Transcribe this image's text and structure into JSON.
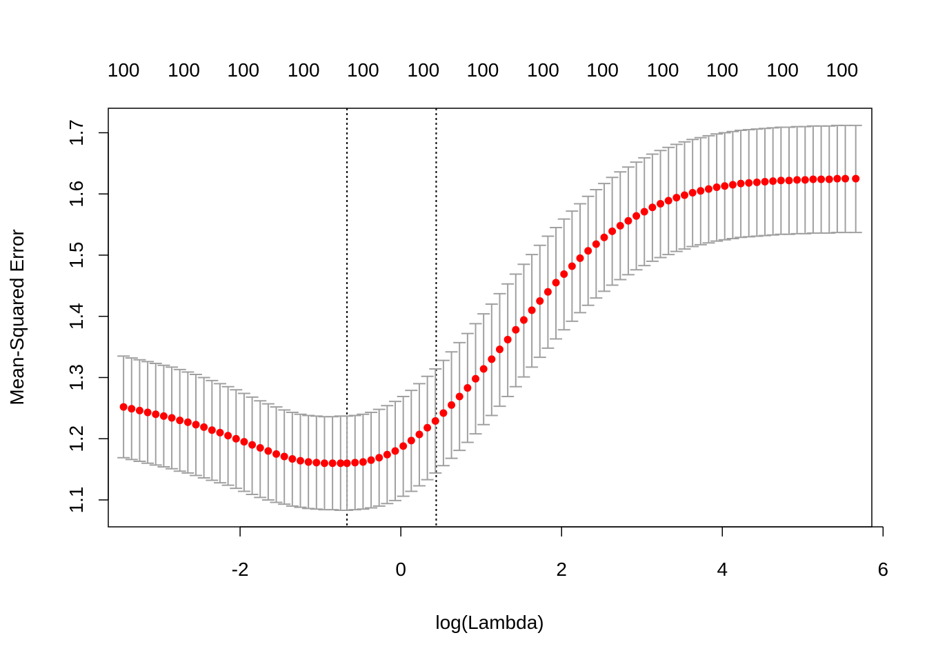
{
  "chart_data": {
    "type": "scatter",
    "title": "",
    "xlabel": "log(Lambda)",
    "ylabel": "Mean-Squared Error",
    "xlim": [
      -3.64,
      5.86
    ],
    "ylim": [
      1.056,
      1.74
    ],
    "x_ticks": [
      -2,
      0,
      2,
      4,
      6
    ],
    "x_tick_labels": [
      "-2",
      "0",
      "2",
      "4",
      "6"
    ],
    "y_ticks": [
      1.1,
      1.2,
      1.3,
      1.4,
      1.5,
      1.6,
      1.7
    ],
    "y_tick_labels": [
      "1.1",
      "1.2",
      "1.3",
      "1.4",
      "1.5",
      "1.6",
      "1.7"
    ],
    "top_axis": {
      "positions": [
        -3.45,
        -2.7,
        -1.96,
        -1.21,
        -0.47,
        0.28,
        1.02,
        1.77,
        2.51,
        3.26,
        4.0,
        4.75,
        5.49
      ],
      "labels": [
        "100",
        "100",
        "100",
        "100",
        "100",
        "100",
        "100",
        "100",
        "100",
        "100",
        "100",
        "100",
        "100"
      ]
    },
    "vlines": [
      {
        "name": "lambda.min",
        "x": -0.67
      },
      {
        "name": "lambda.1se",
        "x": 0.44
      }
    ],
    "point_color": "#ff0000",
    "errorbar_color": "#a0a0a0",
    "series": [
      {
        "name": "cv-mse",
        "x": [
          -3.45,
          -3.35,
          -3.25,
          -3.15,
          -3.05,
          -2.95,
          -2.85,
          -2.75,
          -2.65,
          -2.55,
          -2.45,
          -2.35,
          -2.25,
          -2.15,
          -2.05,
          -1.95,
          -1.85,
          -1.75,
          -1.65,
          -1.55,
          -1.45,
          -1.35,
          -1.25,
          -1.15,
          -1.05,
          -0.95,
          -0.85,
          -0.75,
          -0.67,
          -0.57,
          -0.47,
          -0.37,
          -0.27,
          -0.17,
          -0.07,
          0.03,
          0.13,
          0.23,
          0.33,
          0.43,
          0.53,
          0.63,
          0.73,
          0.83,
          0.93,
          1.03,
          1.13,
          1.23,
          1.33,
          1.43,
          1.53,
          1.63,
          1.73,
          1.83,
          1.93,
          2.03,
          2.13,
          2.23,
          2.33,
          2.43,
          2.53,
          2.63,
          2.73,
          2.83,
          2.93,
          3.03,
          3.13,
          3.23,
          3.33,
          3.43,
          3.53,
          3.63,
          3.73,
          3.83,
          3.93,
          4.03,
          4.13,
          4.23,
          4.33,
          4.43,
          4.53,
          4.63,
          4.73,
          4.83,
          4.93,
          5.03,
          5.13,
          5.23,
          5.33,
          5.43,
          5.53,
          5.66
        ],
        "mse": [
          1.252,
          1.249,
          1.246,
          1.243,
          1.24,
          1.237,
          1.234,
          1.23,
          1.227,
          1.223,
          1.219,
          1.214,
          1.21,
          1.205,
          1.2,
          1.195,
          1.19,
          1.185,
          1.18,
          1.175,
          1.171,
          1.167,
          1.164,
          1.162,
          1.161,
          1.16,
          1.16,
          1.16,
          1.16,
          1.161,
          1.162,
          1.165,
          1.169,
          1.174,
          1.18,
          1.188,
          1.197,
          1.207,
          1.218,
          1.229,
          1.242,
          1.255,
          1.269,
          1.283,
          1.298,
          1.314,
          1.33,
          1.346,
          1.362,
          1.378,
          1.394,
          1.41,
          1.425,
          1.44,
          1.455,
          1.469,
          1.482,
          1.495,
          1.507,
          1.518,
          1.529,
          1.539,
          1.548,
          1.556,
          1.564,
          1.571,
          1.578,
          1.584,
          1.589,
          1.594,
          1.598,
          1.602,
          1.605,
          1.608,
          1.611,
          1.613,
          1.615,
          1.617,
          1.618,
          1.619,
          1.62,
          1.621,
          1.622,
          1.622,
          1.623,
          1.623,
          1.624,
          1.624,
          1.624,
          1.625,
          1.625,
          1.625
        ],
        "upper": [
          1.335,
          1.332,
          1.329,
          1.326,
          1.323,
          1.32,
          1.317,
          1.313,
          1.309,
          1.305,
          1.3,
          1.295,
          1.29,
          1.285,
          1.28,
          1.274,
          1.268,
          1.262,
          1.257,
          1.252,
          1.247,
          1.243,
          1.24,
          1.238,
          1.237,
          1.236,
          1.236,
          1.237,
          1.237,
          1.238,
          1.24,
          1.243,
          1.248,
          1.254,
          1.261,
          1.269,
          1.279,
          1.29,
          1.302,
          1.314,
          1.328,
          1.342,
          1.357,
          1.372,
          1.388,
          1.404,
          1.42,
          1.437,
          1.453,
          1.469,
          1.485,
          1.501,
          1.516,
          1.531,
          1.545,
          1.559,
          1.572,
          1.584,
          1.596,
          1.607,
          1.617,
          1.627,
          1.636,
          1.644,
          1.652,
          1.659,
          1.665,
          1.671,
          1.676,
          1.681,
          1.685,
          1.689,
          1.692,
          1.695,
          1.698,
          1.7,
          1.702,
          1.704,
          1.705,
          1.706,
          1.707,
          1.708,
          1.709,
          1.709,
          1.71,
          1.71,
          1.711,
          1.711,
          1.711,
          1.712,
          1.712,
          1.712
        ],
        "lower": [
          1.169,
          1.166,
          1.163,
          1.16,
          1.157,
          1.154,
          1.151,
          1.147,
          1.144,
          1.14,
          1.136,
          1.132,
          1.128,
          1.124,
          1.119,
          1.114,
          1.109,
          1.104,
          1.1,
          1.096,
          1.093,
          1.09,
          1.088,
          1.086,
          1.085,
          1.084,
          1.084,
          1.083,
          1.083,
          1.084,
          1.085,
          1.087,
          1.09,
          1.094,
          1.099,
          1.106,
          1.114,
          1.123,
          1.133,
          1.144,
          1.156,
          1.168,
          1.181,
          1.194,
          1.208,
          1.223,
          1.238,
          1.253,
          1.269,
          1.285,
          1.301,
          1.317,
          1.333,
          1.348,
          1.363,
          1.378,
          1.392,
          1.406,
          1.418,
          1.43,
          1.441,
          1.451,
          1.46,
          1.468,
          1.476,
          1.483,
          1.49,
          1.496,
          1.501,
          1.506,
          1.51,
          1.514,
          1.517,
          1.52,
          1.523,
          1.525,
          1.527,
          1.529,
          1.53,
          1.531,
          1.532,
          1.533,
          1.534,
          1.534,
          1.535,
          1.535,
          1.536,
          1.536,
          1.536,
          1.537,
          1.537,
          1.537
        ]
      }
    ]
  }
}
